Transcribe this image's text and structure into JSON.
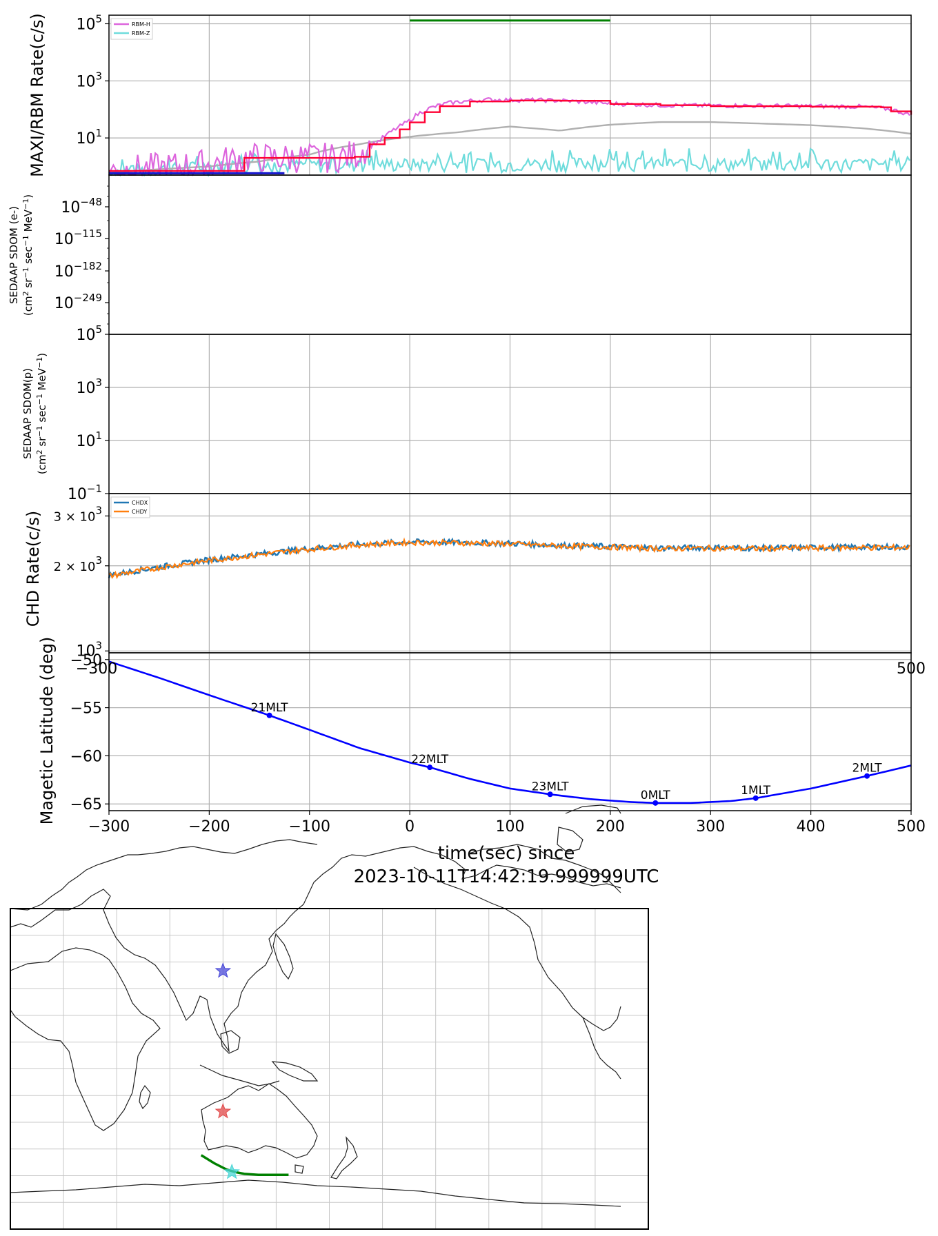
{
  "chart_data": [
    {
      "type": "line",
      "panel": "rbm",
      "ylabel": "MAXI/RBM Rate(c/s)",
      "yscale": "log",
      "ylim": [
        0.5,
        200000
      ],
      "xlim": [
        -300,
        500
      ],
      "yticks": [
        {
          "value": 10,
          "base": "10",
          "exp": "1"
        },
        {
          "value": 1000,
          "base": "10",
          "exp": "3"
        },
        {
          "value": 100000,
          "base": "10",
          "exp": "5"
        }
      ],
      "legend": {
        "placement": "top-left",
        "entries": [
          {
            "name": "RBM-H",
            "color": "#dd66dd"
          },
          {
            "name": "RBM-Z",
            "color": "#6fdcdc"
          }
        ]
      },
      "green_bar": {
        "x": [
          0,
          200
        ],
        "y": 130000,
        "color": "#008000"
      },
      "series": [
        {
          "name": "RBM-H",
          "color": "#dd66dd",
          "x": [
            -300,
            -250,
            -200,
            -165,
            -120,
            -80,
            -55,
            -40,
            -30,
            -20,
            -10,
            0,
            20,
            40,
            60,
            80,
            100,
            150,
            200,
            250,
            300,
            350,
            400,
            450,
            480,
            500
          ],
          "values": [
            0.7,
            0.9,
            1.2,
            2.0,
            2.0,
            2.0,
            2.5,
            5,
            8,
            15,
            25,
            40,
            110,
            170,
            200,
            220,
            215,
            205,
            160,
            140,
            135,
            135,
            130,
            125,
            100,
            60
          ]
        },
        {
          "name": "RBM-Z",
          "color": "#6fdcdc",
          "x": [
            -300,
            -250,
            -200,
            -100,
            0,
            100,
            200,
            300,
            400,
            500
          ],
          "values": [
            0.6,
            0.8,
            1.0,
            1.1,
            1.2,
            1.2,
            1.3,
            1.2,
            1.2,
            1.2
          ]
        },
        {
          "name": "",
          "color": "#ff0033",
          "x": [
            -300,
            -260,
            -165,
            -55,
            -40,
            -25,
            -10,
            0,
            15,
            30,
            60,
            100,
            150,
            200,
            250,
            300,
            400,
            470,
            480,
            500
          ],
          "values": [
            0.7,
            0.7,
            2.0,
            2.2,
            6,
            10,
            20,
            35,
            80,
            130,
            190,
            205,
            200,
            155,
            140,
            130,
            125,
            118,
            85,
            65
          ]
        },
        {
          "name": "",
          "color": "#b0b0b0",
          "x": [
            -300,
            -200,
            -150,
            -100,
            -50,
            0,
            50,
            100,
            150,
            200,
            250,
            300,
            350,
            400,
            450,
            500
          ],
          "values": [
            0.6,
            1.0,
            1.5,
            2.6,
            6,
            11,
            16,
            25,
            18,
            29,
            36,
            36,
            32,
            28,
            22,
            14
          ]
        },
        {
          "name": "",
          "color": "#1010cc",
          "x": [
            -300,
            -165,
            -125
          ],
          "values": [
            0.55,
            0.55,
            0.55
          ]
        }
      ]
    },
    {
      "type": "line",
      "panel": "sdom-e",
      "ylabel": "SEDAAP SDOM (e-)",
      "units": "(cm2 sr-1 sec-1 MeV-1)",
      "yscale": "log",
      "yticks": [
        {
          "base": "10",
          "exp": "−48"
        },
        {
          "base": "10",
          "exp": "−115"
        },
        {
          "base": "10",
          "exp": "−182"
        },
        {
          "base": "10",
          "exp": "−249"
        }
      ],
      "series": []
    },
    {
      "type": "line",
      "panel": "sdom-p",
      "ylabel": "SEDAAP SDOM(p)",
      "units": "(cm2 sr-1 sec-1 MeV-1)",
      "yscale": "log",
      "ylim": [
        0.1,
        100000
      ],
      "yticks": [
        {
          "value": 100000,
          "base": "10",
          "exp": "5"
        },
        {
          "value": 1000,
          "base": "10",
          "exp": "3"
        },
        {
          "value": 10,
          "base": "10",
          "exp": "1"
        },
        {
          "value": 0.1,
          "base": "10",
          "exp": "−1"
        }
      ],
      "series": []
    },
    {
      "type": "line",
      "panel": "chd",
      "ylabel": "CHD Rate(c/s)",
      "yscale": "log",
      "ylim": [
        1000,
        3600
      ],
      "yticks": [
        {
          "value": 3000,
          "base": "3 × 10",
          "exp": "3"
        },
        {
          "value": 2000,
          "base": "2 × 10",
          "exp": "3"
        },
        {
          "value": 1000,
          "base": "10",
          "exp": "3"
        }
      ],
      "legend": {
        "placement": "top-left",
        "entries": [
          {
            "name": "CHDX",
            "color": "#1f77b4"
          },
          {
            "name": "CHDY",
            "color": "#ff7f0e"
          }
        ]
      },
      "series": [
        {
          "name": "CHDX",
          "color": "#1f77b4",
          "x": [
            -300,
            -250,
            -200,
            -150,
            -100,
            -50,
            0,
            50,
            100,
            150,
            200,
            250,
            300,
            350,
            400,
            450,
            500
          ],
          "values": [
            1850,
            1980,
            2100,
            2200,
            2300,
            2380,
            2430,
            2420,
            2400,
            2360,
            2340,
            2310,
            2320,
            2310,
            2320,
            2330,
            2330
          ]
        },
        {
          "name": "CHDY",
          "color": "#ff7f0e",
          "x": [
            -300,
            -250,
            -200,
            -150,
            -100,
            -50,
            0,
            50,
            100,
            150,
            200,
            250,
            300,
            350,
            400,
            450,
            500
          ],
          "values": [
            1840,
            1970,
            2090,
            2190,
            2290,
            2370,
            2420,
            2410,
            2390,
            2350,
            2330,
            2300,
            2310,
            2300,
            2310,
            2320,
            2320
          ]
        }
      ]
    },
    {
      "type": "line",
      "panel": "mlat",
      "ylabel": "Magetic Latitude  (deg)",
      "xlabel": "time(sec) since",
      "xlabel2": "2023-10-11T14:42:19.999999UTC",
      "xlim": [
        -300,
        500
      ],
      "ylim": [
        -65.7,
        -49.3
      ],
      "xticks": [
        "−300",
        "−200",
        "−100",
        "0",
        "100",
        "200",
        "300",
        "400",
        "500"
      ],
      "yticks": [
        "−50",
        "−55",
        "−60",
        "−65"
      ],
      "overlap_ticks": {
        "left": "−300",
        "right": "500"
      },
      "series": [
        {
          "name": "",
          "color": "#0000ff",
          "x": [
            -300,
            -250,
            -200,
            -140,
            -100,
            -50,
            0,
            20,
            60,
            100,
            140,
            180,
            220,
            245,
            280,
            320,
            345,
            400,
            456,
            500
          ],
          "values": [
            -50.2,
            -51.9,
            -53.7,
            -55.8,
            -57.3,
            -59.2,
            -60.7,
            -61.2,
            -62.4,
            -63.4,
            -64.0,
            -64.5,
            -64.8,
            -64.9,
            -64.9,
            -64.7,
            -64.4,
            -63.4,
            -62.1,
            -61.0
          ]
        }
      ],
      "annotations": [
        {
          "x": -140,
          "y": -55.8,
          "text": "21MLT"
        },
        {
          "x": 20,
          "y": -61.2,
          "text": "22MLT"
        },
        {
          "x": 140,
          "y": -64.0,
          "text": "23MLT"
        },
        {
          "x": 245,
          "y": -64.9,
          "text": "0MLT"
        },
        {
          "x": 345,
          "y": -64.4,
          "text": "1MLT"
        },
        {
          "x": 456,
          "y": -62.1,
          "text": "2MLT"
        }
      ]
    },
    {
      "type": "map",
      "panel": "ground-track",
      "projection": "Plate Carree, centered 180° lon",
      "grid": true,
      "track": {
        "color": "#008000",
        "lon": [
          107.7,
          115,
          122,
          127,
          132,
          140,
          148,
          157
        ],
        "lat": [
          -48.5,
          -53,
          -56.5,
          -58,
          -59,
          -59.5,
          -59.5,
          -59.5
        ]
      },
      "markers": [
        {
          "name": "star-blue",
          "color": "#4a4ad8",
          "lon": 120,
          "lat": 55
        },
        {
          "name": "star-red",
          "color": "#e14a4a",
          "lon": 120,
          "lat": -24
        },
        {
          "name": "star-cyan",
          "color": "#4ad6d6",
          "lon": 125,
          "lat": -58
        }
      ]
    }
  ]
}
